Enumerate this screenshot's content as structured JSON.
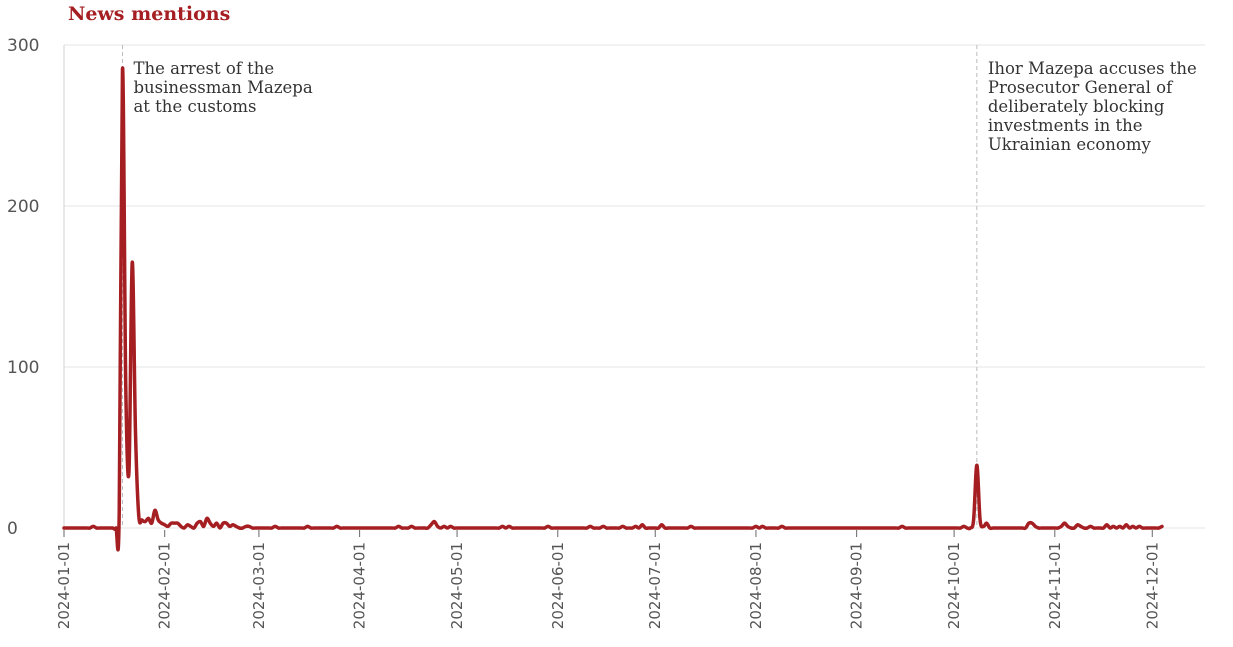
{
  "title": "News mentions",
  "chart_data": {
    "type": "line",
    "title": "News mentions",
    "xlabel": "",
    "ylabel": "",
    "ylim": [
      0,
      300
    ],
    "xlim": [
      "2024-01-01",
      "2024-12-12"
    ],
    "grid": "horizontal",
    "legend": "none",
    "y_ticks": [
      {
        "value": 0,
        "label": "0"
      },
      {
        "value": 100,
        "label": "100"
      },
      {
        "value": 200,
        "label": "200"
      },
      {
        "value": 300,
        "label": "300"
      }
    ],
    "x_ticks": [
      {
        "date": "2024-01-01",
        "label": "2024-01-01"
      },
      {
        "date": "2024-02-01",
        "label": "2024-02-01"
      },
      {
        "date": "2024-03-01",
        "label": "2024-03-01"
      },
      {
        "date": "2024-04-01",
        "label": "2024-04-01"
      },
      {
        "date": "2024-05-01",
        "label": "2024-05-01"
      },
      {
        "date": "2024-06-01",
        "label": "2024-06-01"
      },
      {
        "date": "2024-07-01",
        "label": "2024-07-01"
      },
      {
        "date": "2024-08-01",
        "label": "2024-08-01"
      },
      {
        "date": "2024-09-01",
        "label": "2024-09-01"
      },
      {
        "date": "2024-10-01",
        "label": "2024-10-01"
      },
      {
        "date": "2024-11-01",
        "label": "2024-11-01"
      },
      {
        "date": "2024-12-01",
        "label": "2024-12-01"
      }
    ],
    "series": [
      {
        "color": "#a51e22",
        "points": [
          [
            "2024-01-01",
            0
          ],
          [
            "2024-01-09",
            0
          ],
          [
            "2024-01-10",
            1
          ],
          [
            "2024-01-11",
            0
          ],
          [
            "2024-01-17",
            0
          ],
          [
            "2024-01-18",
            10
          ],
          [
            "2024-01-19",
            285
          ],
          [
            "2024-01-20",
            90
          ],
          [
            "2024-01-21",
            35
          ],
          [
            "2024-01-22",
            165
          ],
          [
            "2024-01-23",
            60
          ],
          [
            "2024-01-24",
            8
          ],
          [
            "2024-01-25",
            5
          ],
          [
            "2024-01-26",
            4
          ],
          [
            "2024-01-27",
            6
          ],
          [
            "2024-01-28",
            3
          ],
          [
            "2024-01-29",
            11
          ],
          [
            "2024-01-30",
            5
          ],
          [
            "2024-01-31",
            3
          ],
          [
            "2024-02-01",
            2
          ],
          [
            "2024-02-02",
            1
          ],
          [
            "2024-02-03",
            3
          ],
          [
            "2024-02-04",
            3
          ],
          [
            "2024-02-05",
            3
          ],
          [
            "2024-02-06",
            1
          ],
          [
            "2024-02-07",
            0
          ],
          [
            "2024-02-08",
            2
          ],
          [
            "2024-02-09",
            1
          ],
          [
            "2024-02-10",
            0
          ],
          [
            "2024-02-11",
            3
          ],
          [
            "2024-02-12",
            4
          ],
          [
            "2024-02-13",
            1
          ],
          [
            "2024-02-14",
            6
          ],
          [
            "2024-02-15",
            3
          ],
          [
            "2024-02-16",
            1
          ],
          [
            "2024-02-17",
            3
          ],
          [
            "2024-02-18",
            0
          ],
          [
            "2024-02-19",
            3
          ],
          [
            "2024-02-20",
            3
          ],
          [
            "2024-02-21",
            1
          ],
          [
            "2024-02-22",
            2
          ],
          [
            "2024-02-23",
            1
          ],
          [
            "2024-02-24",
            0
          ],
          [
            "2024-02-25",
            0
          ],
          [
            "2024-02-26",
            1
          ],
          [
            "2024-02-27",
            1
          ],
          [
            "2024-02-28",
            0
          ],
          [
            "2024-03-01",
            0
          ],
          [
            "2024-03-05",
            0
          ],
          [
            "2024-03-06",
            1
          ],
          [
            "2024-03-07",
            0
          ],
          [
            "2024-03-15",
            0
          ],
          [
            "2024-03-16",
            1
          ],
          [
            "2024-03-17",
            0
          ],
          [
            "2024-03-24",
            0
          ],
          [
            "2024-03-25",
            1
          ],
          [
            "2024-03-26",
            0
          ],
          [
            "2024-04-12",
            0
          ],
          [
            "2024-04-13",
            1
          ],
          [
            "2024-04-14",
            0
          ],
          [
            "2024-04-16",
            0
          ],
          [
            "2024-04-17",
            1
          ],
          [
            "2024-04-18",
            0
          ],
          [
            "2024-04-22",
            0
          ],
          [
            "2024-04-23",
            2
          ],
          [
            "2024-04-24",
            4
          ],
          [
            "2024-04-25",
            1
          ],
          [
            "2024-04-26",
            0
          ],
          [
            "2024-04-27",
            1
          ],
          [
            "2024-04-28",
            0
          ],
          [
            "2024-04-29",
            1
          ],
          [
            "2024-04-30",
            0
          ],
          [
            "2024-05-14",
            0
          ],
          [
            "2024-05-15",
            1
          ],
          [
            "2024-05-16",
            0
          ],
          [
            "2024-05-17",
            1
          ],
          [
            "2024-05-18",
            0
          ],
          [
            "2024-05-28",
            0
          ],
          [
            "2024-05-29",
            1
          ],
          [
            "2024-05-30",
            0
          ],
          [
            "2024-06-10",
            0
          ],
          [
            "2024-06-11",
            1
          ],
          [
            "2024-06-12",
            0
          ],
          [
            "2024-06-14",
            0
          ],
          [
            "2024-06-15",
            1
          ],
          [
            "2024-06-16",
            0
          ],
          [
            "2024-06-20",
            0
          ],
          [
            "2024-06-21",
            1
          ],
          [
            "2024-06-22",
            0
          ],
          [
            "2024-06-24",
            0
          ],
          [
            "2024-06-25",
            1
          ],
          [
            "2024-06-26",
            0
          ],
          [
            "2024-06-27",
            2
          ],
          [
            "2024-06-28",
            0
          ],
          [
            "2024-07-02",
            0
          ],
          [
            "2024-07-03",
            2
          ],
          [
            "2024-07-04",
            0
          ],
          [
            "2024-07-11",
            0
          ],
          [
            "2024-07-12",
            1
          ],
          [
            "2024-07-13",
            0
          ],
          [
            "2024-07-31",
            0
          ],
          [
            "2024-08-01",
            1
          ],
          [
            "2024-08-02",
            0
          ],
          [
            "2024-08-03",
            1
          ],
          [
            "2024-08-04",
            0
          ],
          [
            "2024-08-08",
            0
          ],
          [
            "2024-08-09",
            1
          ],
          [
            "2024-08-10",
            0
          ],
          [
            "2024-09-14",
            0
          ],
          [
            "2024-09-15",
            1
          ],
          [
            "2024-09-16",
            0
          ],
          [
            "2024-10-03",
            0
          ],
          [
            "2024-10-04",
            1
          ],
          [
            "2024-10-05",
            0
          ],
          [
            "2024-10-06",
            0
          ],
          [
            "2024-10-07",
            5
          ],
          [
            "2024-10-08",
            39
          ],
          [
            "2024-10-09",
            5
          ],
          [
            "2024-10-10",
            1
          ],
          [
            "2024-10-11",
            3
          ],
          [
            "2024-10-12",
            0
          ],
          [
            "2024-10-23",
            0
          ],
          [
            "2024-10-24",
            3
          ],
          [
            "2024-10-25",
            3
          ],
          [
            "2024-10-26",
            1
          ],
          [
            "2024-10-27",
            0
          ],
          [
            "2024-11-02",
            0
          ],
          [
            "2024-11-03",
            1
          ],
          [
            "2024-11-04",
            3
          ],
          [
            "2024-11-05",
            1
          ],
          [
            "2024-11-06",
            0
          ],
          [
            "2024-11-08",
            2
          ],
          [
            "2024-11-09",
            1
          ],
          [
            "2024-11-10",
            0
          ],
          [
            "2024-11-12",
            1
          ],
          [
            "2024-11-13",
            0
          ],
          [
            "2024-11-16",
            0
          ],
          [
            "2024-11-17",
            2
          ],
          [
            "2024-11-18",
            0
          ],
          [
            "2024-11-19",
            1
          ],
          [
            "2024-11-20",
            0
          ],
          [
            "2024-11-21",
            1
          ],
          [
            "2024-11-22",
            0
          ],
          [
            "2024-11-23",
            2
          ],
          [
            "2024-11-24",
            0
          ],
          [
            "2024-11-25",
            1
          ],
          [
            "2024-11-26",
            0
          ],
          [
            "2024-11-27",
            1
          ],
          [
            "2024-11-28",
            0
          ],
          [
            "2024-12-01",
            0
          ],
          [
            "2024-12-03",
            0
          ],
          [
            "2024-12-04",
            1
          ]
        ]
      }
    ],
    "annotations": [
      {
        "date": "2024-01-19",
        "lines": [
          "The arrest of the",
          "businessman Mazepa",
          "at the customs"
        ]
      },
      {
        "date": "2024-10-08",
        "lines": [
          "Ihor Mazepa accuses the",
          "Prosecutor General of",
          "deliberately blocking",
          "investments in the",
          "Ukrainian economy"
        ]
      }
    ]
  }
}
